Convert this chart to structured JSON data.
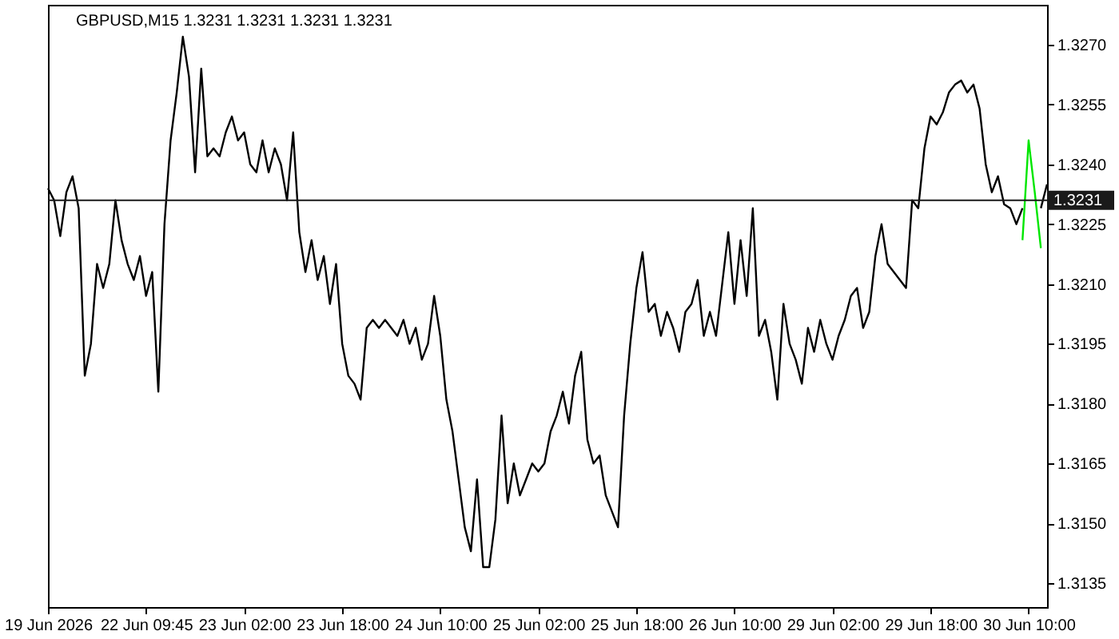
{
  "chart_data": {
    "type": "line",
    "title": "GBPUSD,M15  1.3231 1.3231 1.3231 1.3231",
    "categories": [
      "19 Jun 2026",
      null,
      null,
      null,
      null,
      null,
      null,
      null,
      null,
      null,
      null,
      null,
      null,
      null,
      null,
      null,
      "22 Jun 09:45",
      null,
      null,
      null,
      null,
      null,
      null,
      null,
      null,
      null,
      null,
      null,
      null,
      null,
      null,
      null,
      "23 Jun 02:00",
      null,
      null,
      null,
      null,
      null,
      null,
      null,
      null,
      null,
      null,
      null,
      null,
      null,
      null,
      null,
      "23 Jun 18:00",
      null,
      null,
      null,
      null,
      null,
      null,
      null,
      null,
      null,
      null,
      null,
      null,
      null,
      null,
      null,
      "24 Jun 10:00",
      null,
      null,
      null,
      null,
      null,
      null,
      null,
      null,
      null,
      null,
      null,
      null,
      null,
      null,
      null,
      "25 Jun 02:00",
      null,
      null,
      null,
      null,
      null,
      null,
      null,
      null,
      null,
      null,
      null,
      null,
      null,
      null,
      null,
      "25 Jun 18:00",
      null,
      null,
      null,
      null,
      null,
      null,
      null,
      null,
      null,
      null,
      null,
      null,
      null,
      null,
      null,
      "26 Jun 10:00",
      null,
      null,
      null,
      null,
      null,
      null,
      null,
      null,
      null,
      null,
      null,
      null,
      null,
      null,
      null,
      "29 Jun 02:00",
      null,
      null,
      null,
      null,
      null,
      null,
      null,
      null,
      null,
      null,
      null,
      null,
      null,
      null,
      null,
      "29 Jun 18:00",
      null,
      null,
      null,
      null,
      null,
      null,
      null,
      null,
      null,
      null,
      null,
      null,
      null,
      null,
      null,
      "30 Jun 10:00",
      null,
      null,
      null
    ],
    "ylim": [
      1.3129,
      1.328
    ],
    "yticks": [
      1.3135,
      {
        "value": 1.315,
        "label": "1.3150"
      },
      1.3165,
      {
        "value": 1.318,
        "label": "1.3180"
      },
      1.3195,
      {
        "value": 1.321,
        "label": "1.3210"
      },
      1.3225,
      {
        "value": 1.324,
        "label": "1.3240"
      },
      1.3255,
      {
        "value": 1.327,
        "label": "1.3270"
      }
    ],
    "grid": false,
    "ref_lines": [
      {
        "axis": "y",
        "value": 1.3231,
        "label": "1.3231",
        "color": "#1a1a1a"
      }
    ],
    "series": [
      {
        "color": "#000000",
        "values": [
          1.3234,
          1.3231,
          1.3222,
          1.3233,
          1.3237,
          1.3229,
          1.3187,
          1.3195,
          1.3215,
          1.3209,
          1.3215,
          1.3231,
          1.3221,
          1.3215,
          1.3211,
          1.3217,
          1.3207,
          1.3213,
          1.3183,
          1.3225,
          1.3246,
          1.3258,
          1.3272,
          1.3262,
          1.3238,
          1.3264,
          1.3242,
          1.3244,
          1.3242,
          1.3248,
          1.3252,
          1.3246,
          1.3248,
          1.324,
          1.3238,
          1.3246,
          1.3238,
          1.3244,
          1.324,
          1.3231,
          1.3248,
          1.3223,
          1.3213,
          1.3221,
          1.3211,
          1.3217,
          1.3205,
          1.3215,
          1.3195,
          1.3187,
          1.3185,
          1.3181,
          1.3199,
          1.3201,
          1.3199,
          1.3201,
          1.3199,
          1.3197,
          1.3201,
          1.3195,
          1.3199,
          1.3191,
          1.3195,
          1.3207,
          1.3197,
          1.3181,
          1.3173,
          1.3161,
          1.3149,
          1.3143,
          1.3161,
          1.3139,
          1.3139,
          1.3151,
          1.3177,
          1.3155,
          1.3165,
          1.3157,
          1.3161,
          1.3165,
          1.3163,
          1.3165,
          1.3173,
          1.3177,
          1.3183,
          1.3175,
          1.3187,
          1.3193,
          1.3171,
          1.3165,
          1.3167,
          1.3157,
          1.3153,
          1.3149,
          1.3177,
          1.3195,
          1.3209,
          1.3218,
          1.3203,
          1.3205,
          1.3197,
          1.3203,
          1.3199,
          1.3193,
          1.3203,
          1.3205,
          1.3211,
          1.3197,
          1.3203,
          1.3197,
          1.321,
          1.3223,
          1.3205,
          1.3221,
          1.3207,
          1.3229,
          1.3197,
          1.3201,
          1.3193,
          1.3181,
          1.3205,
          1.3195,
          1.3191,
          1.3185,
          1.3199,
          1.3193,
          1.3201,
          1.3195,
          1.3191,
          1.3197,
          1.3201,
          1.3207,
          1.3209,
          1.3199,
          1.3203,
          1.3217,
          1.3225,
          1.3215,
          1.3213,
          1.3211,
          1.3209,
          1.3231,
          1.3229,
          1.3244,
          1.3252,
          1.325,
          1.3253,
          1.3258,
          1.326,
          1.3261,
          1.3258,
          1.326,
          1.3254,
          1.324,
          1.3233,
          1.3237,
          1.323,
          1.3229,
          1.3225,
          1.3229,
          null,
          null,
          1.3229,
          1.3235
        ]
      },
      {
        "color": "#00e600",
        "values": [
          null,
          null,
          null,
          null,
          null,
          null,
          null,
          null,
          null,
          null,
          null,
          null,
          null,
          null,
          null,
          null,
          null,
          null,
          null,
          null,
          null,
          null,
          null,
          null,
          null,
          null,
          null,
          null,
          null,
          null,
          null,
          null,
          null,
          null,
          null,
          null,
          null,
          null,
          null,
          null,
          null,
          null,
          null,
          null,
          null,
          null,
          null,
          null,
          null,
          null,
          null,
          null,
          null,
          null,
          null,
          null,
          null,
          null,
          null,
          null,
          null,
          null,
          null,
          null,
          null,
          null,
          null,
          null,
          null,
          null,
          null,
          null,
          null,
          null,
          null,
          null,
          null,
          null,
          null,
          null,
          null,
          null,
          null,
          null,
          null,
          null,
          null,
          null,
          null,
          null,
          null,
          null,
          null,
          null,
          null,
          null,
          null,
          null,
          null,
          null,
          null,
          null,
          null,
          null,
          null,
          null,
          null,
          null,
          null,
          null,
          null,
          null,
          null,
          null,
          null,
          null,
          null,
          null,
          null,
          null,
          null,
          null,
          null,
          null,
          null,
          null,
          null,
          null,
          null,
          null,
          null,
          null,
          null,
          null,
          null,
          null,
          null,
          null,
          null,
          null,
          null,
          null,
          null,
          null,
          null,
          null,
          null,
          null,
          null,
          null,
          null,
          null,
          null,
          null,
          null,
          null,
          null,
          null,
          null,
          1.3221,
          1.3246,
          1.3233,
          1.3219,
          null
        ]
      }
    ]
  }
}
